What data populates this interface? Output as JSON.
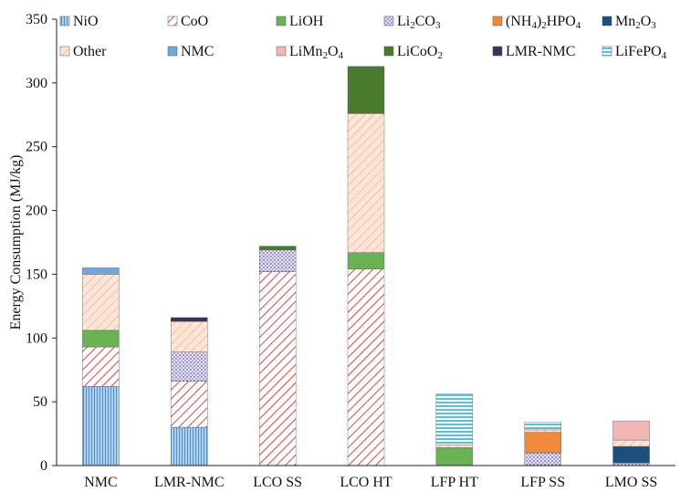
{
  "chart_data": {
    "type": "bar",
    "stacked": true,
    "title": "",
    "xlabel": "",
    "ylabel": "Energy Consumption (MJ/kg)",
    "ylim": [
      0,
      350
    ],
    "yticks": [
      0,
      50,
      100,
      150,
      200,
      250,
      300,
      350
    ],
    "grid": false,
    "legend_position": "top",
    "categories": [
      "NMC",
      "LMR-NMC",
      "LCO SS",
      "LCO HT",
      "LFP HT",
      "LFP SS",
      "LMO SS"
    ],
    "series": [
      {
        "name": "NiO",
        "label_parts": [
          [
            "NiO",
            ""
          ]
        ],
        "color": "#4a90d0",
        "pattern": "vlines",
        "values": [
          62,
          30,
          0,
          0,
          0,
          0,
          0
        ]
      },
      {
        "name": "CoO",
        "label_parts": [
          [
            "CoO",
            ""
          ]
        ],
        "color": "#e0433c",
        "pattern": "diag",
        "values": [
          31,
          36,
          152,
          154,
          0,
          0,
          0
        ]
      },
      {
        "name": "LiOH",
        "label_parts": [
          [
            "LiOH",
            ""
          ]
        ],
        "color": "#6ab352",
        "pattern": "solid",
        "values": [
          13,
          0,
          0,
          13,
          14,
          0,
          0
        ]
      },
      {
        "name": "Li2CO3",
        "label_parts": [
          [
            "Li",
            ""
          ],
          [
            "2",
            "sub"
          ],
          [
            "CO",
            ""
          ],
          [
            "3",
            "sub"
          ]
        ],
        "color": "#b8b3d8",
        "pattern": "dots",
        "values": [
          0,
          23,
          17,
          0,
          0,
          10,
          2
        ]
      },
      {
        "name": "(NH4)2HPO4",
        "label_parts": [
          [
            "(NH",
            ""
          ],
          [
            "4",
            "sub"
          ],
          [
            ")",
            ""
          ],
          [
            "2",
            "sub"
          ],
          [
            "HPO",
            ""
          ],
          [
            "4",
            "sub"
          ]
        ],
        "color": "#f08a3a",
        "pattern": "solid",
        "values": [
          0,
          0,
          0,
          0,
          0,
          16,
          0
        ]
      },
      {
        "name": "Mn2O3",
        "label_parts": [
          [
            "Mn",
            ""
          ],
          [
            "2",
            "sub"
          ],
          [
            "O",
            ""
          ],
          [
            "3",
            "sub"
          ]
        ],
        "color": "#1d4f7c",
        "pattern": "solid",
        "values": [
          0,
          0,
          0,
          0,
          0,
          0,
          13
        ]
      },
      {
        "name": "Other",
        "label_parts": [
          [
            "Other",
            ""
          ]
        ],
        "color": "#f4a47a",
        "pattern": "diagLight",
        "values": [
          44,
          24,
          0,
          109,
          2,
          2,
          5
        ]
      },
      {
        "name": "NMC",
        "label_parts": [
          [
            "NMC",
            ""
          ]
        ],
        "color": "#6fa8dc",
        "pattern": "solid",
        "values": [
          5,
          0,
          0,
          0,
          0,
          0,
          0
        ]
      },
      {
        "name": "LiMn2O4",
        "label_parts": [
          [
            "LiMn",
            ""
          ],
          [
            "2",
            "sub"
          ],
          [
            "O",
            ""
          ],
          [
            "4",
            "sub"
          ]
        ],
        "color": "#f3b6b6",
        "pattern": "solid",
        "values": [
          0,
          0,
          0,
          0,
          0,
          0,
          15
        ]
      },
      {
        "name": "LiCoO2",
        "label_parts": [
          [
            "LiCoO",
            ""
          ],
          [
            "2",
            "sub"
          ]
        ],
        "color": "#4a7a2e",
        "pattern": "solid",
        "values": [
          0,
          0,
          3,
          37,
          0,
          0,
          0
        ]
      },
      {
        "name": "LMR-NMC",
        "label_parts": [
          [
            "LMR-NMC",
            ""
          ]
        ],
        "color": "#3e2f5b",
        "pattern": "solid",
        "values": [
          0,
          3,
          0,
          0,
          0,
          0,
          0
        ]
      },
      {
        "name": "LiFePO4",
        "label_parts": [
          [
            "LiFePO",
            ""
          ],
          [
            "4",
            "sub"
          ]
        ],
        "color": "#2bb3d0",
        "pattern": "hlines",
        "values": [
          0,
          0,
          0,
          0,
          40,
          6,
          0
        ]
      }
    ]
  }
}
